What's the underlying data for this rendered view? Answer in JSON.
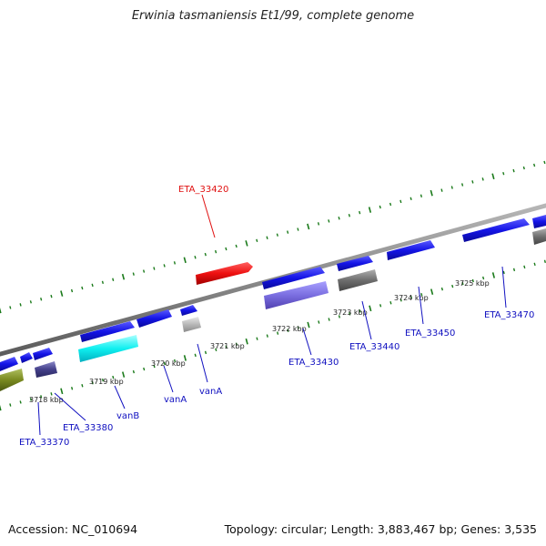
{
  "title": "Erwinia tasmaniensis Et1/99, complete genome",
  "accession": "Accession: NC_010694",
  "stats": "Topology: circular; Length: 3,883,467 bp; Genes: 3,535",
  "colors": {
    "forward_gene": "#1010e0",
    "highlight_gene": "#e01010",
    "label_blue": "#1010c0",
    "label_red": "#e01010",
    "backbone": "#888888",
    "tick": "#1a7a1a"
  },
  "scale_ticks": [
    {
      "label": "3718 kbp"
    },
    {
      "label": "3719 kbp"
    },
    {
      "label": "3720 kbp"
    },
    {
      "label": "3721 kbp"
    },
    {
      "label": "3722 kbp"
    },
    {
      "label": "3723 kbp"
    },
    {
      "label": "3724 kbp"
    },
    {
      "label": "3725 kbp"
    }
  ],
  "gene_labels": [
    {
      "label": "ETA_33420",
      "color": "red"
    },
    {
      "label": "ETA_33370",
      "color": "blue"
    },
    {
      "label": "ETA_33380",
      "color": "blue"
    },
    {
      "label": "vanB",
      "color": "blue"
    },
    {
      "label": "vanA",
      "color": "blue"
    },
    {
      "label": "vanA",
      "color": "blue"
    },
    {
      "label": "ETA_33430",
      "color": "blue"
    },
    {
      "label": "ETA_33440",
      "color": "blue"
    },
    {
      "label": "ETA_33450",
      "color": "blue"
    },
    {
      "label": "ETA_33470",
      "color": "blue"
    }
  ]
}
